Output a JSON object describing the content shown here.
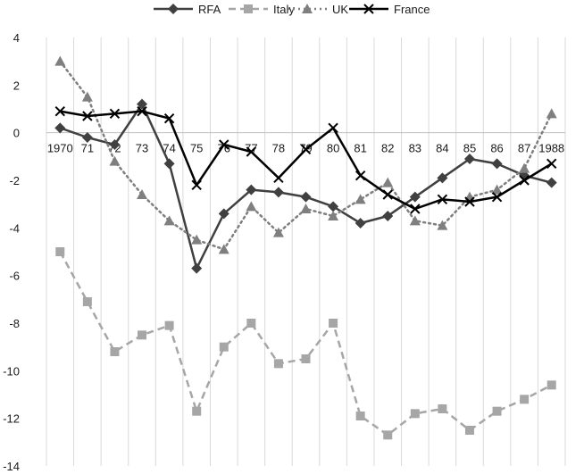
{
  "chart_data": {
    "type": "line",
    "categories": [
      "1970",
      "71",
      "72",
      "73",
      "74",
      "75",
      "76",
      "77",
      "78",
      "79",
      "80",
      "81",
      "82",
      "83",
      "84",
      "85",
      "86",
      "87",
      "1988"
    ],
    "ylim": [
      -14,
      4
    ],
    "yticks": [
      4,
      2,
      0,
      -2,
      -4,
      -6,
      -8,
      -10,
      -12,
      -14
    ],
    "grid": "vertical",
    "legend": "top",
    "series": [
      {
        "name": "RFA",
        "color": "#404040",
        "style": "solid",
        "marker": "diamond",
        "values": [
          0.2,
          -0.2,
          -0.5,
          1.2,
          -1.3,
          -5.7,
          -3.4,
          -2.4,
          -2.5,
          -2.7,
          -3.1,
          -3.8,
          -3.5,
          -2.7,
          -1.9,
          -1.1,
          -1.3,
          -1.8,
          -2.1
        ]
      },
      {
        "name": "Italy",
        "color": "#a6a6a6",
        "style": "dashed",
        "marker": "square",
        "values": [
          -5.0,
          -7.1,
          -9.2,
          -8.5,
          -8.1,
          -11.7,
          -9.0,
          -8.0,
          -9.7,
          -9.5,
          -8.0,
          -11.9,
          -12.7,
          -11.8,
          -11.6,
          -12.5,
          -11.7,
          -11.2,
          -10.6
        ]
      },
      {
        "name": "UK",
        "color": "#7f7f7f",
        "style": "dotted",
        "marker": "triangle",
        "values": [
          3.0,
          1.5,
          -1.2,
          -2.6,
          -3.7,
          -4.5,
          -4.9,
          -3.1,
          -4.2,
          -3.2,
          -3.5,
          -2.8,
          -2.1,
          -3.7,
          -3.9,
          -2.7,
          -2.4,
          -1.5,
          0.8
        ]
      },
      {
        "name": "France",
        "color": "#000000",
        "style": "solid",
        "marker": "x",
        "values": [
          0.9,
          0.7,
          0.8,
          0.9,
          0.6,
          -2.2,
          -0.5,
          -0.8,
          -1.9,
          -0.7,
          0.2,
          -1.8,
          -2.6,
          -3.2,
          -2.8,
          -2.9,
          -2.7,
          -2.0,
          -1.3
        ]
      }
    ]
  }
}
